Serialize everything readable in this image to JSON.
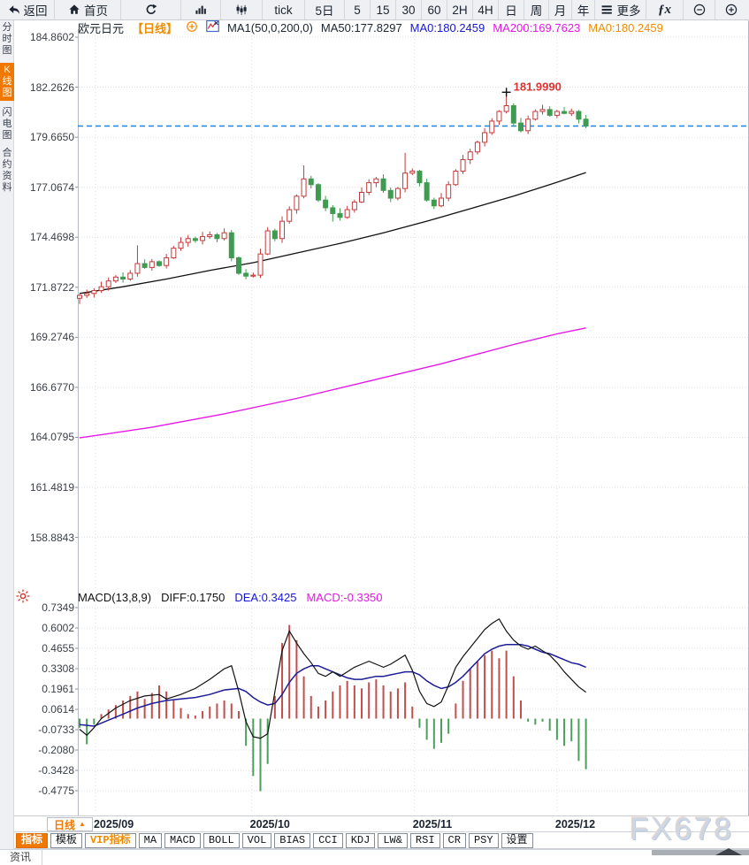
{
  "top_toolbar": {
    "items": [
      {
        "id": "back",
        "label": "返回",
        "icon": "back"
      },
      {
        "id": "home",
        "label": "首页",
        "icon": "home"
      },
      {
        "id": "refresh",
        "label": "",
        "icon": "refresh"
      },
      {
        "id": "bar-chart",
        "label": "",
        "icon": "bars"
      },
      {
        "id": "candle-chart",
        "label": "",
        "icon": "candles"
      },
      {
        "id": "tick",
        "label": "tick",
        "icon": ""
      },
      {
        "id": "5d",
        "label": "5日",
        "icon": ""
      },
      {
        "id": "5",
        "label": "5",
        "icon": ""
      },
      {
        "id": "15",
        "label": "15",
        "icon": ""
      },
      {
        "id": "30",
        "label": "30",
        "icon": ""
      },
      {
        "id": "60",
        "label": "60",
        "icon": ""
      },
      {
        "id": "2h",
        "label": "2H",
        "icon": ""
      },
      {
        "id": "4h",
        "label": "4H",
        "icon": ""
      },
      {
        "id": "day",
        "label": "日",
        "icon": ""
      },
      {
        "id": "week",
        "label": "周",
        "icon": ""
      },
      {
        "id": "month",
        "label": "月",
        "icon": ""
      },
      {
        "id": "year",
        "label": "年",
        "icon": ""
      },
      {
        "id": "more",
        "label": "更多",
        "icon": "menu"
      },
      {
        "id": "fx",
        "label": "",
        "icon": "fx"
      },
      {
        "id": "zoom-out",
        "label": "",
        "icon": "zoom-out"
      },
      {
        "id": "zoom-in",
        "label": "",
        "icon": "zoom-in"
      }
    ]
  },
  "sidebar": {
    "items": [
      {
        "id": "time-chart",
        "label": "分时图",
        "active": false
      },
      {
        "id": "kline-chart",
        "label": "K线图",
        "active": true
      },
      {
        "id": "lightning-chart",
        "label": "闪电图",
        "active": false
      },
      {
        "id": "contract-info",
        "label": "合约资料",
        "active": false
      }
    ]
  },
  "chart_header": {
    "symbol": "欧元日元",
    "period": "【日线】",
    "ma_settings": "MA1(50,0,200,0)",
    "ma50": "MA50:177.8297",
    "ma_blue": "MA0:180.2459",
    "ma200": "MA200:169.7623",
    "ma_orange": "MA0:180.2459"
  },
  "macd_header": {
    "title": "MACD(13,8,9)",
    "diff": "DIFF:0.1750",
    "dea": "DEA:0.3425",
    "macd": "MACD:-0.3350"
  },
  "price_axis_labels": [
    "184.8602",
    "182.2626",
    "179.6650",
    "177.0674",
    "174.4698",
    "171.8722",
    "169.2746",
    "166.6770",
    "164.0795",
    "161.4819",
    "158.8843"
  ],
  "macd_axis_labels": [
    "0.7349",
    "0.6002",
    "0.4655",
    "0.3308",
    "0.1961",
    "0.0614",
    "-0.0733",
    "-0.2080",
    "-0.3428",
    "-0.4775"
  ],
  "period_selector": {
    "label": "日线",
    "arrow": "▲"
  },
  "bottom_toolbar": {
    "items": [
      {
        "id": "indicators",
        "label": "指标",
        "style": "active"
      },
      {
        "id": "templates",
        "label": "模板",
        "style": ""
      },
      {
        "id": "vip-indicators",
        "label": "VIP指标",
        "style": "vip"
      },
      {
        "id": "ma",
        "label": "MA",
        "style": ""
      },
      {
        "id": "macd",
        "label": "MACD",
        "style": ""
      },
      {
        "id": "boll",
        "label": "BOLL",
        "style": ""
      },
      {
        "id": "vol",
        "label": "VOL",
        "style": ""
      },
      {
        "id": "bias",
        "label": "BIAS",
        "style": ""
      },
      {
        "id": "cci",
        "label": "CCI",
        "style": ""
      },
      {
        "id": "kdj",
        "label": "KDJ",
        "style": ""
      },
      {
        "id": "lw",
        "label": "LW&",
        "style": ""
      },
      {
        "id": "rsi",
        "label": "RSI",
        "style": ""
      },
      {
        "id": "cr",
        "label": "CR",
        "style": ""
      },
      {
        "id": "psy",
        "label": "PSY",
        "style": ""
      },
      {
        "id": "settings",
        "label": "设置",
        "style": ""
      }
    ]
  },
  "watermark": "FX678",
  "news_tab": "资讯",
  "colors": {
    "up": "#c23a3a",
    "down": "#3f9b51",
    "ma50": "#111111",
    "ma200": "#e618e6",
    "last_price_line": "#1e86e0",
    "diff": "#111111",
    "dea": "#1d1d99",
    "hist_up": "#c0504d",
    "hist_down": "#4aa05a",
    "accent_orange": "#f07800",
    "high_label_color": "#e03131",
    "grid": "#dcdfe4",
    "axis_tick": "#8a9097"
  },
  "chart_data": {
    "type": "candlestick_with_macd",
    "symbol": "欧元日元",
    "period": "日线",
    "price_axis_range": [
      158.8843,
      184.8602
    ],
    "macd_axis_range": [
      -0.4775,
      0.7349
    ],
    "last_price": 180.2459,
    "high_label": "181.9990",
    "high_value": 181.999,
    "high_index": 59,
    "first_open": 171.3,
    "months": [
      {
        "label": "2025/09",
        "i": 2.2
      },
      {
        "label": "2025/10",
        "i": 23.8
      },
      {
        "label": "2025/11",
        "i": 46.3
      },
      {
        "label": "2025/12",
        "i": 66.0
      }
    ],
    "closes": [
      171.45,
      171.55,
      171.7,
      171.9,
      172.2,
      172.4,
      172.3,
      172.6,
      173.1,
      172.9,
      173.2,
      173.0,
      173.4,
      173.9,
      174.2,
      174.4,
      174.3,
      174.5,
      174.6,
      174.4,
      174.7,
      173.4,
      172.6,
      172.45,
      172.5,
      173.6,
      174.8,
      174.4,
      175.3,
      175.9,
      176.6,
      177.5,
      177.2,
      176.4,
      176.0,
      175.7,
      175.5,
      175.9,
      176.3,
      176.8,
      177.3,
      177.5,
      176.9,
      176.5,
      177.0,
      177.8,
      177.9,
      177.3,
      176.4,
      176.1,
      176.5,
      177.2,
      177.9,
      178.5,
      178.9,
      179.4,
      179.9,
      180.5,
      181.0,
      181.3,
      180.4,
      180.0,
      180.6,
      181.0,
      181.1,
      180.8,
      181.0,
      180.9,
      181.0,
      180.6,
      180.25
    ],
    "wick_high_overrides": {
      "8": 174.05,
      "31": 178.2,
      "45": 178.85,
      "59": 181.999
    },
    "wick_low_overrides": {
      "0": 171.0,
      "35": 175.28
    },
    "ma50_points": [
      [
        0,
        171.55
      ],
      [
        6,
        171.9
      ],
      [
        12,
        172.3
      ],
      [
        18,
        172.75
      ],
      [
        24,
        173.15
      ],
      [
        30,
        173.65
      ],
      [
        36,
        174.15
      ],
      [
        42,
        174.7
      ],
      [
        48,
        175.3
      ],
      [
        54,
        175.95
      ],
      [
        60,
        176.6
      ],
      [
        65,
        177.2
      ],
      [
        70,
        177.83
      ]
    ],
    "ma200_points": [
      [
        0,
        164.05
      ],
      [
        10,
        164.6
      ],
      [
        20,
        165.3
      ],
      [
        30,
        166.1
      ],
      [
        40,
        167.0
      ],
      [
        50,
        167.9
      ],
      [
        60,
        168.9
      ],
      [
        66,
        169.45
      ],
      [
        70,
        169.76
      ]
    ],
    "macd_hist": [
      -0.06,
      -0.17,
      -0.04,
      0.03,
      0.06,
      0.09,
      0.12,
      0.15,
      0.18,
      0.13,
      0.17,
      0.22,
      0.18,
      0.12,
      0.07,
      0.03,
      0.02,
      0.05,
      0.08,
      0.1,
      0.12,
      0.1,
      0.05,
      -0.18,
      -0.38,
      -0.48,
      -0.3,
      0.15,
      0.5,
      0.62,
      0.52,
      0.28,
      0.15,
      0.08,
      0.12,
      0.18,
      0.22,
      0.25,
      0.22,
      0.2,
      0.24,
      0.26,
      0.22,
      0.18,
      0.2,
      0.24,
      0.08,
      -0.06,
      -0.14,
      -0.2,
      -0.16,
      -0.1,
      0.1,
      0.25,
      0.33,
      0.38,
      0.42,
      0.45,
      0.4,
      0.45,
      0.28,
      0.12,
      -0.02,
      -0.04,
      -0.02,
      -0.08,
      -0.14,
      -0.18,
      -0.15,
      -0.28,
      -0.335
    ],
    "diff_points": [
      [
        0,
        -0.07
      ],
      [
        1,
        -0.11
      ],
      [
        2,
        -0.06
      ],
      [
        3,
        0.0
      ],
      [
        5,
        0.07
      ],
      [
        7,
        0.12
      ],
      [
        9,
        0.15
      ],
      [
        11,
        0.16
      ],
      [
        12,
        0.13
      ],
      [
        14,
        0.16
      ],
      [
        16,
        0.2
      ],
      [
        18,
        0.26
      ],
      [
        20,
        0.33
      ],
      [
        21,
        0.35
      ],
      [
        22,
        0.18
      ],
      [
        23,
        -0.02
      ],
      [
        24,
        -0.12
      ],
      [
        25,
        -0.13
      ],
      [
        26,
        -0.1
      ],
      [
        27,
        0.18
      ],
      [
        28,
        0.45
      ],
      [
        29,
        0.58
      ],
      [
        30,
        0.5
      ],
      [
        31,
        0.43
      ],
      [
        32,
        0.37
      ],
      [
        33,
        0.3
      ],
      [
        34,
        0.28
      ],
      [
        35,
        0.31
      ],
      [
        36,
        0.28
      ],
      [
        37,
        0.31
      ],
      [
        38,
        0.34
      ],
      [
        39,
        0.36
      ],
      [
        40,
        0.38
      ],
      [
        41,
        0.36
      ],
      [
        42,
        0.34
      ],
      [
        43,
        0.36
      ],
      [
        44,
        0.39
      ],
      [
        45,
        0.42
      ],
      [
        46,
        0.32
      ],
      [
        47,
        0.18
      ],
      [
        48,
        0.1
      ],
      [
        49,
        0.08
      ],
      [
        50,
        0.11
      ],
      [
        51,
        0.22
      ],
      [
        52,
        0.34
      ],
      [
        53,
        0.41
      ],
      [
        54,
        0.47
      ],
      [
        55,
        0.53
      ],
      [
        56,
        0.59
      ],
      [
        57,
        0.63
      ],
      [
        58,
        0.66
      ],
      [
        59,
        0.58
      ],
      [
        60,
        0.52
      ],
      [
        61,
        0.48
      ],
      [
        62,
        0.46
      ],
      [
        63,
        0.48
      ],
      [
        64,
        0.45
      ],
      [
        65,
        0.42
      ],
      [
        66,
        0.37
      ],
      [
        67,
        0.31
      ],
      [
        68,
        0.26
      ],
      [
        69,
        0.21
      ],
      [
        70,
        0.175
      ]
    ],
    "dea_points": [
      [
        0,
        -0.04
      ],
      [
        2,
        -0.05
      ],
      [
        4,
        -0.01
      ],
      [
        6,
        0.03
      ],
      [
        8,
        0.07
      ],
      [
        10,
        0.1
      ],
      [
        12,
        0.12
      ],
      [
        14,
        0.13
      ],
      [
        16,
        0.14
      ],
      [
        18,
        0.16
      ],
      [
        20,
        0.19
      ],
      [
        22,
        0.2
      ],
      [
        23,
        0.18
      ],
      [
        24,
        0.14
      ],
      [
        25,
        0.11
      ],
      [
        26,
        0.09
      ],
      [
        27,
        0.1
      ],
      [
        28,
        0.16
      ],
      [
        29,
        0.24
      ],
      [
        30,
        0.3
      ],
      [
        31,
        0.33
      ],
      [
        32,
        0.35
      ],
      [
        33,
        0.35
      ],
      [
        34,
        0.33
      ],
      [
        35,
        0.31
      ],
      [
        36,
        0.29
      ],
      [
        37,
        0.27
      ],
      [
        38,
        0.26
      ],
      [
        39,
        0.26
      ],
      [
        40,
        0.27
      ],
      [
        41,
        0.28
      ],
      [
        42,
        0.28
      ],
      [
        43,
        0.29
      ],
      [
        44,
        0.3
      ],
      [
        45,
        0.31
      ],
      [
        46,
        0.31
      ],
      [
        47,
        0.29
      ],
      [
        48,
        0.25
      ],
      [
        49,
        0.22
      ],
      [
        50,
        0.2
      ],
      [
        51,
        0.21
      ],
      [
        52,
        0.24
      ],
      [
        53,
        0.28
      ],
      [
        54,
        0.33
      ],
      [
        55,
        0.38
      ],
      [
        56,
        0.43
      ],
      [
        57,
        0.46
      ],
      [
        58,
        0.48
      ],
      [
        59,
        0.49
      ],
      [
        60,
        0.49
      ],
      [
        61,
        0.49
      ],
      [
        62,
        0.48
      ],
      [
        63,
        0.46
      ],
      [
        64,
        0.44
      ],
      [
        65,
        0.43
      ],
      [
        66,
        0.41
      ],
      [
        67,
        0.39
      ],
      [
        68,
        0.37
      ],
      [
        69,
        0.36
      ],
      [
        70,
        0.34
      ]
    ]
  }
}
